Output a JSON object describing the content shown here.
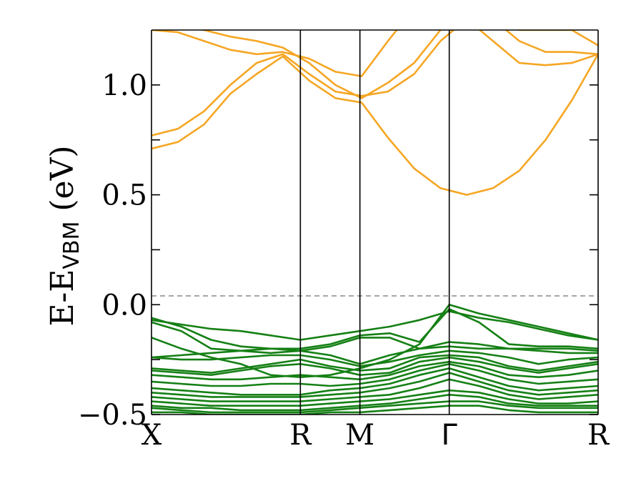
{
  "chart_data": {
    "type": "line",
    "title": "",
    "ylabel": "E-E",
    "ylabel_sub": "VBM",
    "ylabel_unit": " (eV)",
    "ylim": [
      -0.5,
      1.25
    ],
    "yticks": [
      {
        "value": -0.5,
        "label": "−0.5"
      },
      {
        "value": 0.0,
        "label": "0.0"
      },
      {
        "value": 0.5,
        "label": "0.5"
      },
      {
        "value": 1.0,
        "label": "1.0"
      }
    ],
    "yminor_ticks": [
      -0.25,
      0.25,
      0.75
    ],
    "kpoints": [
      {
        "label": "X",
        "x": 0
      },
      {
        "label": "R",
        "x": 5
      },
      {
        "label": "M",
        "x": 7
      },
      {
        "label": "Γ",
        "x": 10
      },
      {
        "label": "R",
        "x": 15
      }
    ],
    "xlim": [
      0,
      15
    ],
    "fermi_level": 0.04,
    "colors": {
      "valence": "#158015",
      "conduction": "#f5a623",
      "fermi": "#888888"
    },
    "valence_bands": [
      [
        -0.15,
        -0.2,
        -0.24,
        -0.27,
        -0.32,
        -0.33,
        -0.32,
        -0.29,
        -0.25,
        -0.18,
        -0.0,
        -0.04,
        -0.07,
        -0.1,
        -0.13,
        -0.16
      ],
      [
        -0.07,
        -0.09,
        -0.11,
        -0.12,
        -0.14,
        -0.16,
        -0.14,
        -0.12,
        -0.1,
        -0.07,
        -0.03,
        -0.06,
        -0.08,
        -0.11,
        -0.14,
        -0.16
      ],
      [
        -0.06,
        -0.1,
        -0.16,
        -0.19,
        -0.2,
        -0.2,
        -0.18,
        -0.14,
        -0.13,
        -0.17,
        -0.02,
        -0.08,
        -0.18,
        -0.19,
        -0.19,
        -0.2
      ],
      [
        -0.08,
        -0.12,
        -0.2,
        -0.21,
        -0.22,
        -0.21,
        -0.19,
        -0.15,
        -0.15,
        -0.2,
        -0.17,
        -0.18,
        -0.2,
        -0.2,
        -0.2,
        -0.21
      ],
      [
        -0.24,
        -0.23,
        -0.22,
        -0.21,
        -0.2,
        -0.21,
        -0.23,
        -0.27,
        -0.23,
        -0.2,
        -0.19,
        -0.2,
        -0.2,
        -0.21,
        -0.22,
        -0.22
      ],
      [
        -0.24,
        -0.25,
        -0.25,
        -0.24,
        -0.23,
        -0.23,
        -0.25,
        -0.28,
        -0.26,
        -0.23,
        -0.21,
        -0.22,
        -0.24,
        -0.27,
        -0.25,
        -0.24
      ],
      [
        -0.29,
        -0.3,
        -0.31,
        -0.29,
        -0.27,
        -0.25,
        -0.28,
        -0.3,
        -0.29,
        -0.24,
        -0.23,
        -0.24,
        -0.28,
        -0.3,
        -0.28,
        -0.26
      ],
      [
        -0.3,
        -0.31,
        -0.32,
        -0.3,
        -0.28,
        -0.27,
        -0.29,
        -0.32,
        -0.31,
        -0.26,
        -0.24,
        -0.26,
        -0.29,
        -0.31,
        -0.29,
        -0.27
      ],
      [
        -0.32,
        -0.33,
        -0.34,
        -0.34,
        -0.33,
        -0.32,
        -0.33,
        -0.34,
        -0.32,
        -0.28,
        -0.26,
        -0.28,
        -0.32,
        -0.33,
        -0.32,
        -0.3
      ],
      [
        -0.35,
        -0.36,
        -0.37,
        -0.37,
        -0.36,
        -0.36,
        -0.37,
        -0.36,
        -0.34,
        -0.3,
        -0.27,
        -0.3,
        -0.34,
        -0.36,
        -0.35,
        -0.34
      ],
      [
        -0.38,
        -0.39,
        -0.4,
        -0.41,
        -0.41,
        -0.41,
        -0.39,
        -0.38,
        -0.36,
        -0.32,
        -0.29,
        -0.33,
        -0.37,
        -0.39,
        -0.38,
        -0.37
      ],
      [
        -0.4,
        -0.41,
        -0.42,
        -0.42,
        -0.42,
        -0.42,
        -0.41,
        -0.4,
        -0.38,
        -0.35,
        -0.31,
        -0.35,
        -0.39,
        -0.41,
        -0.4,
        -0.39
      ],
      [
        -0.42,
        -0.43,
        -0.44,
        -0.44,
        -0.44,
        -0.44,
        -0.43,
        -0.42,
        -0.41,
        -0.38,
        -0.34,
        -0.37,
        -0.41,
        -0.43,
        -0.42,
        -0.41
      ],
      [
        -0.44,
        -0.45,
        -0.46,
        -0.46,
        -0.46,
        -0.46,
        -0.45,
        -0.44,
        -0.43,
        -0.41,
        -0.39,
        -0.4,
        -0.43,
        -0.45,
        -0.45,
        -0.44
      ],
      [
        -0.46,
        -0.47,
        -0.47,
        -0.48,
        -0.48,
        -0.48,
        -0.47,
        -0.46,
        -0.45,
        -0.43,
        -0.41,
        -0.42,
        -0.45,
        -0.46,
        -0.46,
        -0.46
      ],
      [
        -0.47,
        -0.48,
        -0.49,
        -0.49,
        -0.49,
        -0.49,
        -0.48,
        -0.47,
        -0.46,
        -0.45,
        -0.44,
        -0.44,
        -0.46,
        -0.47,
        -0.47,
        -0.47
      ],
      [
        -0.49,
        -0.49,
        -0.5,
        -0.5,
        -0.5,
        -0.5,
        -0.49,
        -0.49,
        -0.48,
        -0.47,
        -0.46,
        -0.46,
        -0.48,
        -0.49,
        -0.49,
        -0.49
      ]
    ],
    "conduction_bands": [
      [
        0.71,
        0.74,
        0.82,
        0.96,
        1.05,
        1.13,
        1.02,
        0.94,
        0.92,
        0.76,
        0.62,
        0.53,
        0.5,
        0.53,
        0.61,
        0.75,
        0.93,
        1.14
      ],
      [
        0.77,
        0.8,
        0.88,
        1.0,
        1.1,
        1.14,
        1.05,
        0.97,
        0.95,
        0.97,
        1.05,
        1.2,
        1.3,
        1.2,
        1.1,
        1.09,
        1.1,
        1.14
      ],
      [
        1.25,
        1.24,
        1.2,
        1.16,
        1.14,
        1.15,
        1.12,
        1.06,
        1.04,
        1.2,
        1.35,
        1.45,
        1.5,
        1.3,
        1.2,
        1.15,
        1.15,
        1.14
      ],
      [
        1.3,
        1.28,
        1.25,
        1.22,
        1.2,
        1.17,
        1.1,
        1.0,
        0.94,
        1.01,
        1.1,
        1.25,
        1.4,
        1.3,
        1.25,
        1.25,
        1.25,
        1.18
      ]
    ]
  }
}
